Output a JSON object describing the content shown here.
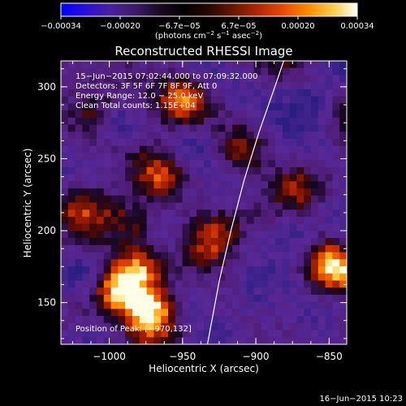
{
  "chart_data": {
    "type": "heatmap",
    "title": "Reconstructed RHESSI Image",
    "xlabel": "Heliocentric X (arcsec)",
    "ylabel": "Heliocentric Y (arcsec)",
    "xlim": [
      -1033,
      -838
    ],
    "ylim": [
      121,
      318
    ],
    "x_ticks": [
      -1000,
      -950,
      -900,
      -850
    ],
    "x_tick_labels": [
      "−1000",
      "−950",
      "−900",
      "−850"
    ],
    "y_ticks": [
      150,
      200,
      250,
      300
    ],
    "y_tick_labels": [
      "150",
      "200",
      "250",
      "300"
    ],
    "colorbar": {
      "range": [
        -0.00034,
        0.00034
      ],
      "tick_labels": [
        "−0.00034",
        "−0.00020",
        "−6.7e−05",
        "6.7e−05",
        "0.00020",
        "0.00034"
      ],
      "units_html": "(photons cm<tspan baseline-shift=\"super\" font-size=\"7\">−2</tspan> s<tspan baseline-shift=\"super\" font-size=\"7\">−1</tspan> asec<tspan baseline-shift=\"super\" font-size=\"7\">−2</tspan>)",
      "colormap": [
        "#0000ff",
        "#2a10d8",
        "#48209f",
        "#3c1c6a",
        "#1a0a22",
        "#000000",
        "#280800",
        "#6a1800",
        "#b02800",
        "#e84a00",
        "#ff8a00",
        "#ffcc44",
        "#ffffff"
      ]
    },
    "annotations": [
      "15−Jun−2015 07:02:44.000 to 07:09:32.000",
      "Detectors: 3F 5F 6F 7F 8F 9F, Att 0",
      "Energy Range: 12.0 − 25.0 keV",
      "Clean     Total counts: 1.15E+04"
    ],
    "position_label": "Position of Peak: [−970,132]",
    "limb_curve": [
      [
        -933,
        121
      ],
      [
        -925,
        165
      ],
      [
        -917,
        200
      ],
      [
        -908,
        235
      ],
      [
        -898,
        268
      ],
      [
        -887,
        300
      ],
      [
        -881,
        318
      ]
    ],
    "bright_regions": [
      {
        "x": -972,
        "y": 143,
        "intensity": 1.0
      },
      {
        "x": -993,
        "y": 160,
        "intensity": 0.8
      },
      {
        "x": -980,
        "y": 175,
        "intensity": 0.7
      },
      {
        "x": -846,
        "y": 175,
        "intensity": 0.9
      },
      {
        "x": -948,
        "y": 290,
        "intensity": 0.7
      },
      {
        "x": -965,
        "y": 240,
        "intensity": 0.55
      },
      {
        "x": -1015,
        "y": 215,
        "intensity": 0.55
      },
      {
        "x": -985,
        "y": 205,
        "intensity": 0.6
      },
      {
        "x": -930,
        "y": 195,
        "intensity": 0.55
      },
      {
        "x": -910,
        "y": 255,
        "intensity": 0.45
      },
      {
        "x": -870,
        "y": 230,
        "intensity": 0.4
      },
      {
        "x": -1010,
        "y": 285,
        "intensity": 0.5
      }
    ],
    "dim_regions": [
      {
        "x": -995,
        "y": 275,
        "intensity": 0.6
      },
      {
        "x": -860,
        "y": 290,
        "intensity": 0.5
      },
      {
        "x": -875,
        "y": 200,
        "intensity": 0.5
      },
      {
        "x": -1018,
        "y": 170,
        "intensity": 0.45
      },
      {
        "x": -940,
        "y": 260,
        "intensity": 0.4
      },
      {
        "x": -900,
        "y": 150,
        "intensity": 0.35
      }
    ]
  },
  "footer": {
    "timestamp": "16−Jun−2015 10:23"
  }
}
